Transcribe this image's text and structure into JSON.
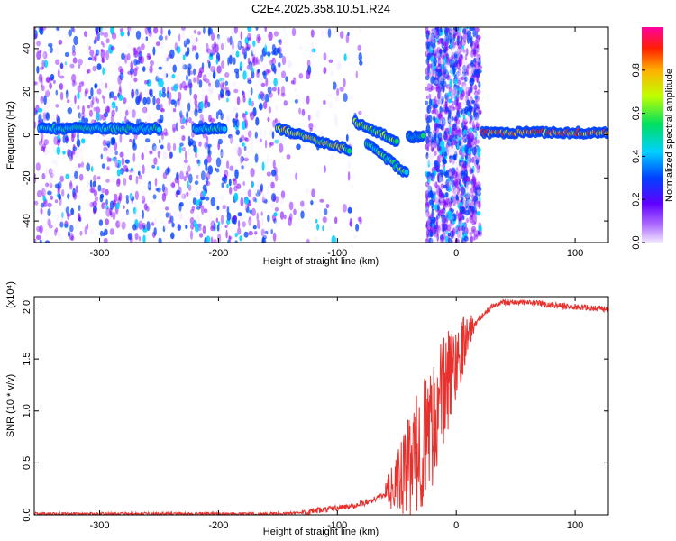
{
  "title": "C2E4.2025.358.10.51.R24",
  "chart_data": [
    {
      "type": "heatmap",
      "title": "C2E4.2025.358.10.51.R24",
      "xlabel": "Height of straight line (km)",
      "ylabel": "Frequency (Hz)",
      "xlim": [
        -355,
        128
      ],
      "ylim": [
        -50,
        50
      ],
      "x_ticks": [
        -300,
        -200,
        -100,
        0,
        100
      ],
      "y_ticks": [
        -40,
        -20,
        0,
        20,
        40
      ],
      "colorbar": {
        "label": "Normalized spectral amplitude",
        "range": [
          0,
          1
        ],
        "ticks": [
          "0.0",
          "0.2",
          "0.4",
          "0.6",
          "0.8"
        ],
        "colors": [
          "#f2e6ff",
          "#8000ff",
          "#0040ff",
          "#00d0ff",
          "#00e060",
          "#c0ff00",
          "#ffb000",
          "#ff2000",
          "#ff00a0"
        ]
      },
      "noise_regions": [
        {
          "x_start": -355,
          "x_end": -145,
          "density": "high"
        },
        {
          "x_start": -145,
          "x_end": -80,
          "density": "low"
        },
        {
          "x_start": -25,
          "x_end": 20,
          "density": "high"
        }
      ],
      "signal_segments": [
        {
          "x": [
            -350,
            -250
          ],
          "y": [
            3,
            3
          ],
          "amplitude": 0.45
        },
        {
          "x": [
            -220,
            -195
          ],
          "y": [
            3,
            3
          ],
          "amplitude": 0.45
        },
        {
          "x": [
            -150,
            -90
          ],
          "y": [
            3,
            -7
          ],
          "amplitude": 0.7
        },
        {
          "x": [
            -85,
            -50
          ],
          "y": [
            6,
            -3
          ],
          "amplitude": 0.65
        },
        {
          "x": [
            -75,
            -42
          ],
          "y": [
            -4,
            -18
          ],
          "amplitude": 0.55
        },
        {
          "x": [
            -40,
            -28
          ],
          "y": [
            -1,
            -1
          ],
          "amplitude": 0.5
        },
        {
          "x": [
            22,
            128
          ],
          "y": [
            1,
            1
          ],
          "amplitude": 0.85
        }
      ],
      "grid": false
    },
    {
      "type": "line",
      "xlabel": "Height of straight line (km)",
      "ylabel": "SNR (10 * v/v)",
      "y_multiplier": "(x10⁴)",
      "xlim": [
        -355,
        128
      ],
      "ylim": [
        0,
        2.1
      ],
      "x_ticks": [
        -300,
        -200,
        -100,
        0,
        100
      ],
      "y_ticks": [
        "0.0",
        "0.5",
        "1.0",
        "1.5",
        "2.0"
      ],
      "color": "#e8302c",
      "x": [
        -355,
        -300,
        -250,
        -200,
        -160,
        -130,
        -110,
        -90,
        -75,
        -60,
        -50,
        -40,
        -30,
        -20,
        -10,
        0,
        10,
        20,
        30,
        40,
        60,
        80,
        100,
        128
      ],
      "y": [
        0.01,
        0.01,
        0.01,
        0.01,
        0.01,
        0.02,
        0.05,
        0.08,
        0.12,
        0.2,
        0.3,
        0.45,
        0.65,
        0.9,
        1.2,
        1.5,
        1.75,
        1.9,
        2.0,
        2.05,
        2.04,
        2.02,
        2.0,
        1.98
      ],
      "noise_amplitude": "increases between x = -60 and x = 10, with spikes up to about 2.0",
      "grid": false
    }
  ]
}
